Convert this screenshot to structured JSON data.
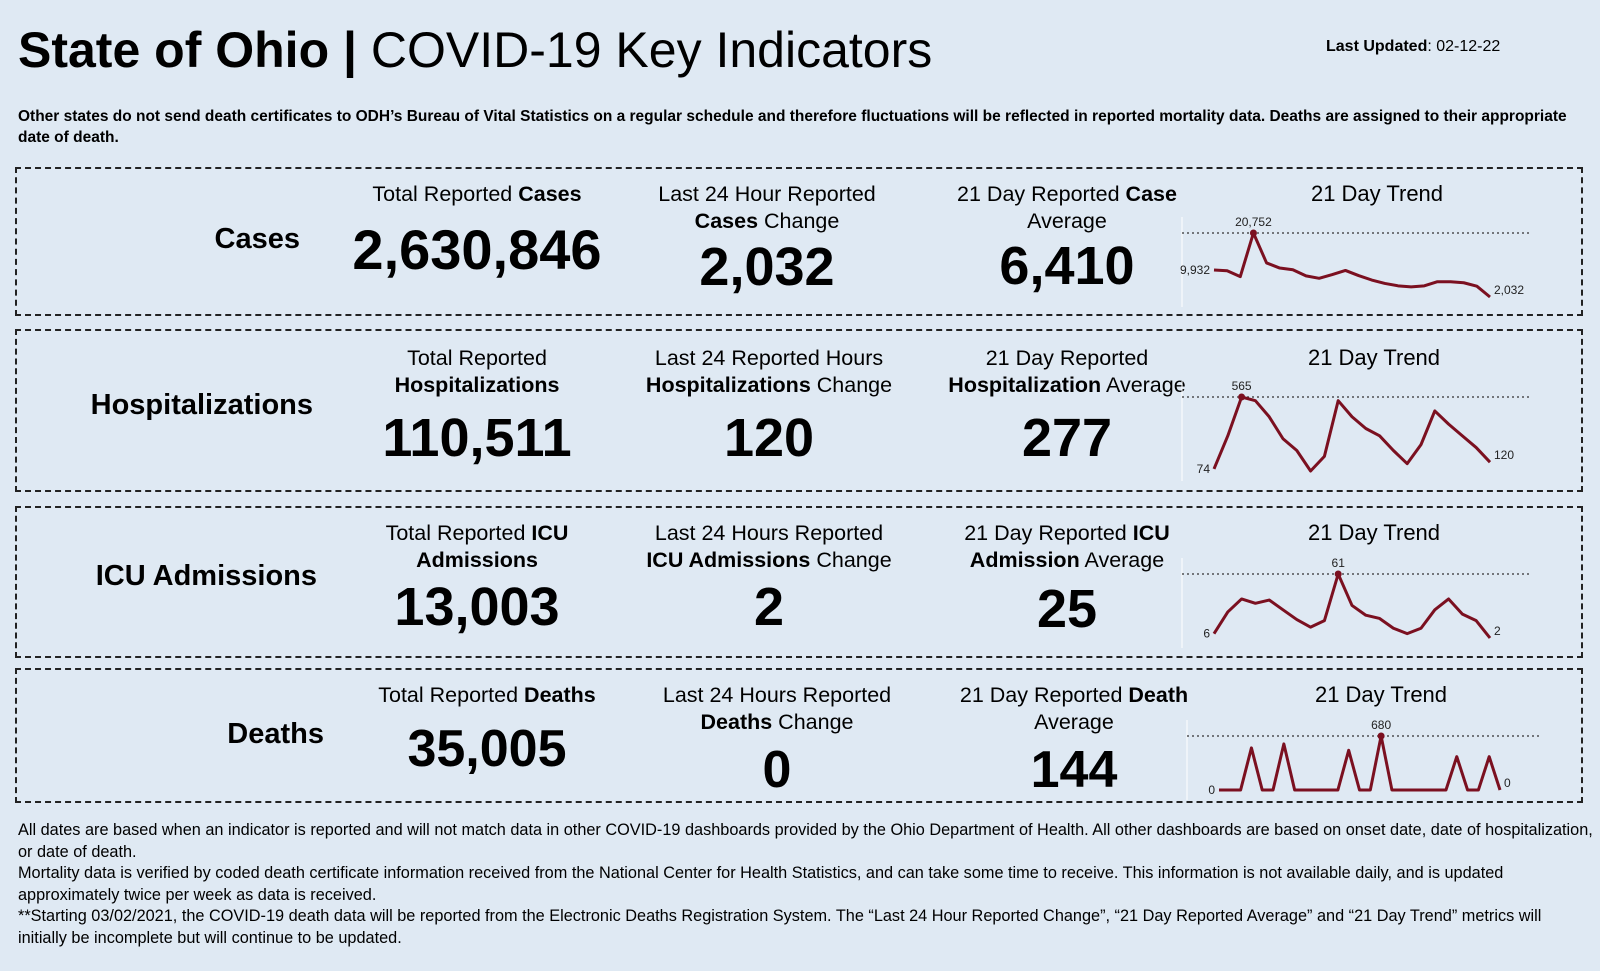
{
  "header": {
    "title_bold": "State of Ohio |",
    "title_rest": "COVID-19  Key Indicators",
    "updated_label": "Last Updated",
    "updated_value": ": 02-12-22"
  },
  "note": "Other states do not send death certificates to ODH’s Bureau of Vital Statistics on a regular schedule and therefore fluctuations will be reflected in reported mortality data. Deaths are assigned to their appropriate date of death.",
  "rows": [
    {
      "label": "Cases",
      "total_hdr_a": "Total Reported ",
      "total_hdr_b": "Cases",
      "total_value": "2,630,846",
      "change_hdr_a": "Last 24 Hour Reported",
      "change_hdr_b": "Cases",
      "change_hdr_c": " Change",
      "change_value": "2,032",
      "avg_hdr_a": "21 Day Reported ",
      "avg_hdr_b": "Case",
      "avg_hdr_c": "Average",
      "avg_value": "6,410",
      "trend_title": "21 Day Trend"
    },
    {
      "label": "Hospitalizations",
      "total_hdr_a": "Total Reported",
      "total_hdr_b": "Hospitalizations",
      "total_value": "110,511",
      "change_hdr_a": "Last 24 Reported Hours",
      "change_hdr_b": "Hospitalizations",
      "change_hdr_c": " Change",
      "change_value": "120",
      "avg_hdr_a": "21 Day Reported",
      "avg_hdr_b": "Hospitalization",
      "avg_hdr_c": " Average",
      "avg_value": "277",
      "trend_title": "21 Day Trend"
    },
    {
      "label": "ICU Admissions",
      "total_hdr_a": "Total Reported ",
      "total_hdr_b": "ICU",
      "total_hdr_c": "Admissions",
      "total_value": "13,003",
      "change_hdr_a": "Last 24 Hours Reported",
      "change_hdr_b": "ICU Admissions",
      "change_hdr_c": " Change",
      "change_value": "2",
      "avg_hdr_a": "21 Day Reported ",
      "avg_hdr_b": "ICU",
      "avg_hdr_c": "Admission",
      "avg_hdr_d": " Average",
      "avg_value": "25",
      "trend_title": "21 Day Trend"
    },
    {
      "label": "Deaths",
      "total_hdr_a": "Total Reported ",
      "total_hdr_b": "Deaths",
      "total_value": "35,005",
      "change_hdr_a": "Last 24 Hours Reported",
      "change_hdr_b": "Deaths",
      "change_hdr_c": " Change",
      "change_value": "0",
      "avg_hdr_a": "21 Day Reported ",
      "avg_hdr_b": "Death",
      "avg_hdr_c": "Average",
      "avg_value": "144",
      "trend_title": "21 Day Trend"
    }
  ],
  "footer": {
    "p1": "All dates are based when an indicator is reported and will not match data in other COVID-19 dashboards provided by the Ohio Department of Health. All other dashboards are based on onset date, date of hospitalization, or date of death.",
    "p2": "Mortality data is verified by coded death certificate information received from the National Center for Health Statistics, and can take some time to receive. This information is not available daily, and is updated approximately twice per week as data is received.",
    "p3": "**Starting 03/02/2021, the COVID-19 death data will be reported from the Electronic Deaths Registration System. The “Last 24 Hour Reported Change”, “21 Day Reported Average” and “21 Day Trend” metrics will initially be incomplete but will continue to be updated."
  },
  "colors": {
    "line": "#7b1020",
    "background": "#dfe9f3"
  },
  "chart_data": [
    {
      "type": "line",
      "name": "cases-trend",
      "values": [
        9932,
        9700,
        8000,
        20752,
        12000,
        10500,
        10000,
        8200,
        7500,
        8600,
        9800,
        8300,
        7000,
        6000,
        5300,
        5000,
        5300,
        6500,
        6500,
        6200,
        5200,
        2032
      ],
      "point_labels": [
        {
          "index": 0,
          "text": "9,932"
        },
        {
          "index": 3,
          "text": "20,752"
        },
        {
          "index": 21,
          "text": "2,032"
        }
      ],
      "peak_index": 3
    },
    {
      "type": "line",
      "name": "hospitalizations-trend",
      "values": [
        74,
        300,
        565,
        540,
        430,
        280,
        200,
        60,
        160,
        540,
        430,
        350,
        300,
        200,
        110,
        240,
        470,
        380,
        300,
        220,
        120
      ],
      "point_labels": [
        {
          "index": 0,
          "text": "74"
        },
        {
          "index": 2,
          "text": "565"
        },
        {
          "index": 20,
          "text": "120"
        }
      ],
      "peak_index": 2
    },
    {
      "type": "line",
      "name": "icu-trend",
      "values": [
        6,
        26,
        38,
        34,
        37,
        28,
        19,
        12,
        18,
        61,
        32,
        23,
        20,
        11,
        6,
        11,
        28,
        38,
        24,
        18,
        2
      ],
      "point_labels": [
        {
          "index": 0,
          "text": "6"
        },
        {
          "index": 9,
          "text": "61"
        },
        {
          "index": 20,
          "text": "2"
        }
      ],
      "peak_index": 9
    },
    {
      "type": "line",
      "name": "deaths-trend",
      "values": [
        0,
        0,
        0,
        530,
        0,
        0,
        580,
        0,
        0,
        0,
        0,
        0,
        500,
        0,
        0,
        680,
        0,
        0,
        0,
        0,
        0,
        0,
        420,
        0,
        0,
        420,
        0
      ],
      "point_labels": [
        {
          "index": 0,
          "text": "0"
        },
        {
          "index": 15,
          "text": "680"
        },
        {
          "index": 26,
          "text": "0"
        }
      ],
      "peak_index": 15
    }
  ]
}
